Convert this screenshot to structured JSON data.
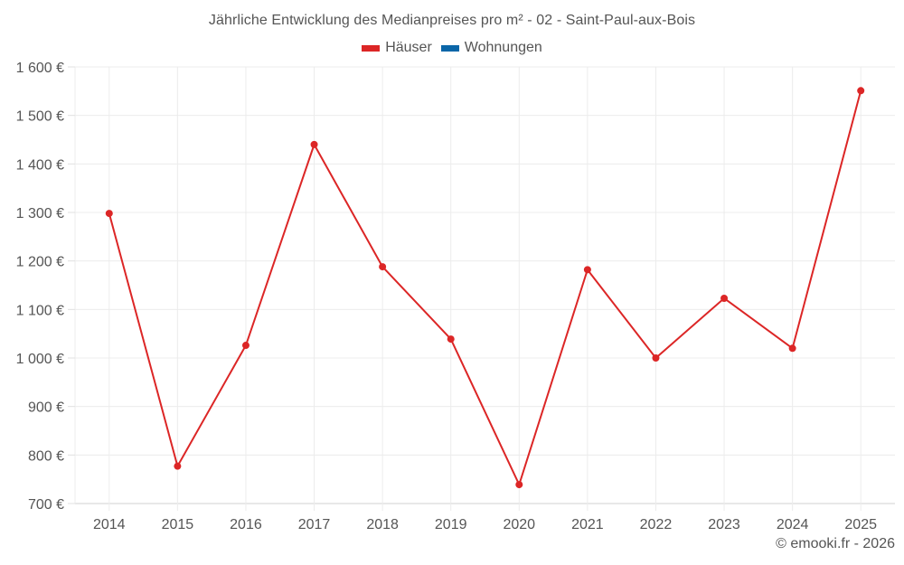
{
  "title": "Jährliche Entwicklung des Medianpreises pro m² - 02 - Saint-Paul-aux-Bois",
  "legend": [
    {
      "label": "Häuser",
      "color": "#dc2626"
    },
    {
      "label": "Wohnungen",
      "color": "#0b66a8"
    }
  ],
  "credit": "© emooki.fr - 2026",
  "chart_data": {
    "type": "line",
    "title": "Jährliche Entwicklung des Medianpreises pro m² - 02 - Saint-Paul-aux-Bois",
    "xlabel": "",
    "ylabel": "",
    "categories": [
      "2014",
      "2015",
      "2016",
      "2017",
      "2018",
      "2019",
      "2020",
      "2021",
      "2022",
      "2023",
      "2024",
      "2025"
    ],
    "series": [
      {
        "name": "Häuser",
        "color": "#dc2626",
        "values": [
          1298,
          777,
          1026,
          1440,
          1188,
          1039,
          739,
          1182,
          1000,
          1123,
          1020,
          1551
        ]
      },
      {
        "name": "Wohnungen",
        "color": "#0b66a8",
        "values": []
      }
    ],
    "ylim": [
      700,
      1600
    ],
    "yticks": [
      700,
      800,
      900,
      1000,
      1100,
      1200,
      1300,
      1400,
      1500,
      1600
    ],
    "ytick_labels": [
      "700 €",
      "800 €",
      "900 €",
      "1 000 €",
      "1 100 €",
      "1 200 €",
      "1 300 €",
      "1 400 €",
      "1 500 €",
      "1 600 €"
    ],
    "grid": true,
    "legend_position": "top"
  }
}
